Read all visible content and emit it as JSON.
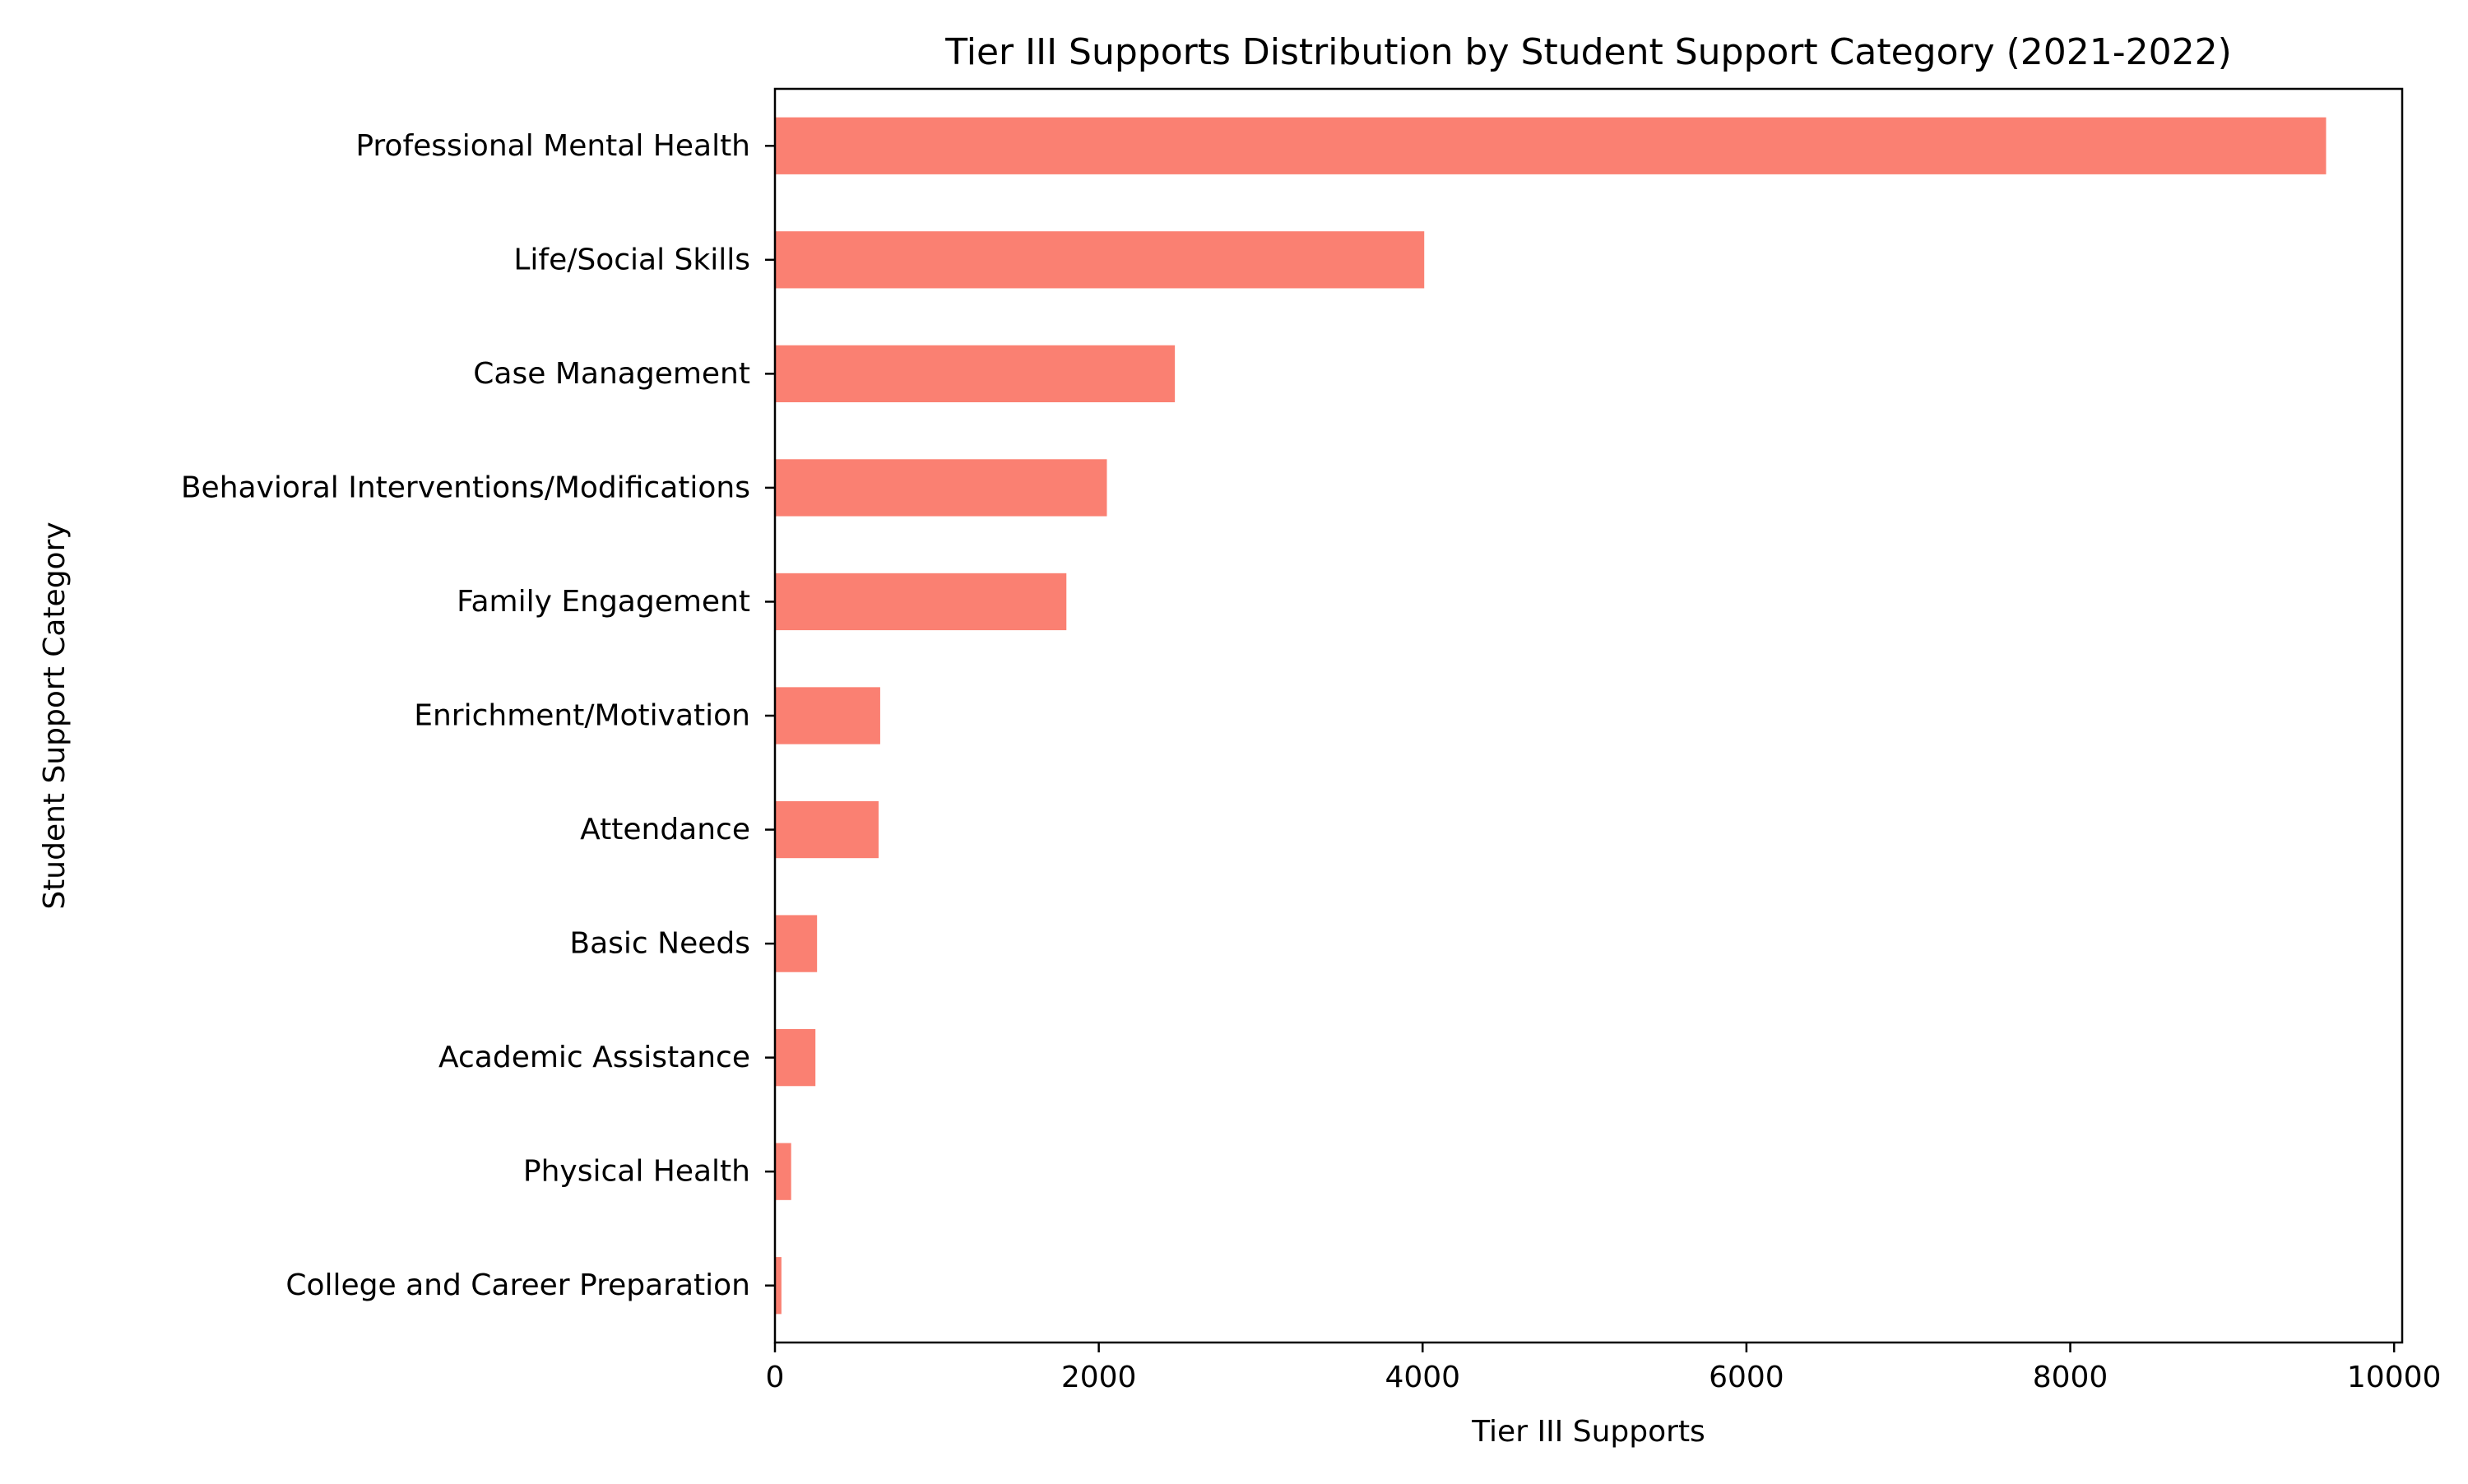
{
  "chart_data": {
    "type": "bar",
    "orientation": "horizontal",
    "title": "Tier III Supports Distribution by Student Support Category (2021-2022)",
    "xlabel": "Tier III Supports",
    "ylabel": "Student Support Category",
    "categories": [
      "Professional Mental Health",
      "Life/Social Skills",
      "Case Management",
      "Behavioral Interventions/Modifications",
      "Family Engagement",
      "Enrichment/Motivation",
      "Attendance",
      "Basic Needs",
      "Academic Assistance",
      "Physical Health",
      "College and Career Preparation"
    ],
    "values": [
      9580,
      4010,
      2470,
      2050,
      1800,
      650,
      640,
      260,
      250,
      100,
      40
    ],
    "xlim": [
      0,
      10050
    ],
    "xticks": [
      0,
      2000,
      4000,
      6000,
      8000,
      10000
    ],
    "xtick_labels": [
      "0",
      "2000",
      "4000",
      "6000",
      "8000",
      "10000"
    ],
    "bar_color": "#fa8072",
    "grid": false,
    "legend": "none"
  }
}
